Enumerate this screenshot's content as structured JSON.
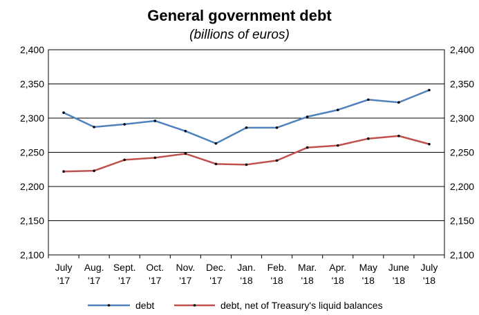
{
  "chart_data": {
    "type": "line",
    "title": "General government debt",
    "subtitle": "(billions of euros)",
    "categories": [
      [
        "July",
        "'17"
      ],
      [
        "Aug.",
        "'17"
      ],
      [
        "Sept.",
        "'17"
      ],
      [
        "Oct.",
        "'17"
      ],
      [
        "Nov.",
        "'17"
      ],
      [
        "Dec.",
        "'17"
      ],
      [
        "Jan.",
        "'18"
      ],
      [
        "Feb.",
        "'18"
      ],
      [
        "Mar.",
        "'18"
      ],
      [
        "Apr.",
        "'18"
      ],
      [
        "May",
        "'18"
      ],
      [
        "June",
        "'18"
      ],
      [
        "July",
        "'18"
      ]
    ],
    "series": [
      {
        "name": "debt",
        "color": "#4F81BD",
        "values": [
          2308,
          2287,
          2291,
          2296,
          2281,
          2263,
          2286,
          2286,
          2302,
          2312,
          2327,
          2323,
          2341
        ]
      },
      {
        "name": "debt, net of Treasury's liquid balances",
        "color": "#C0504D",
        "values": [
          2222,
          2223,
          2239,
          2242,
          2248,
          2233,
          2232,
          2238,
          2257,
          2260,
          2270,
          2274,
          2262
        ]
      }
    ],
    "ylim": [
      2100,
      2400
    ],
    "yticks": [
      2100,
      2150,
      2200,
      2250,
      2300,
      2350,
      2400
    ],
    "ytick_labels": [
      "2,100",
      "2,150",
      "2,200",
      "2,250",
      "2,300",
      "2,350",
      "2,400"
    ],
    "secondary_axis": true,
    "grid": true,
    "legend_position": "bottom"
  }
}
